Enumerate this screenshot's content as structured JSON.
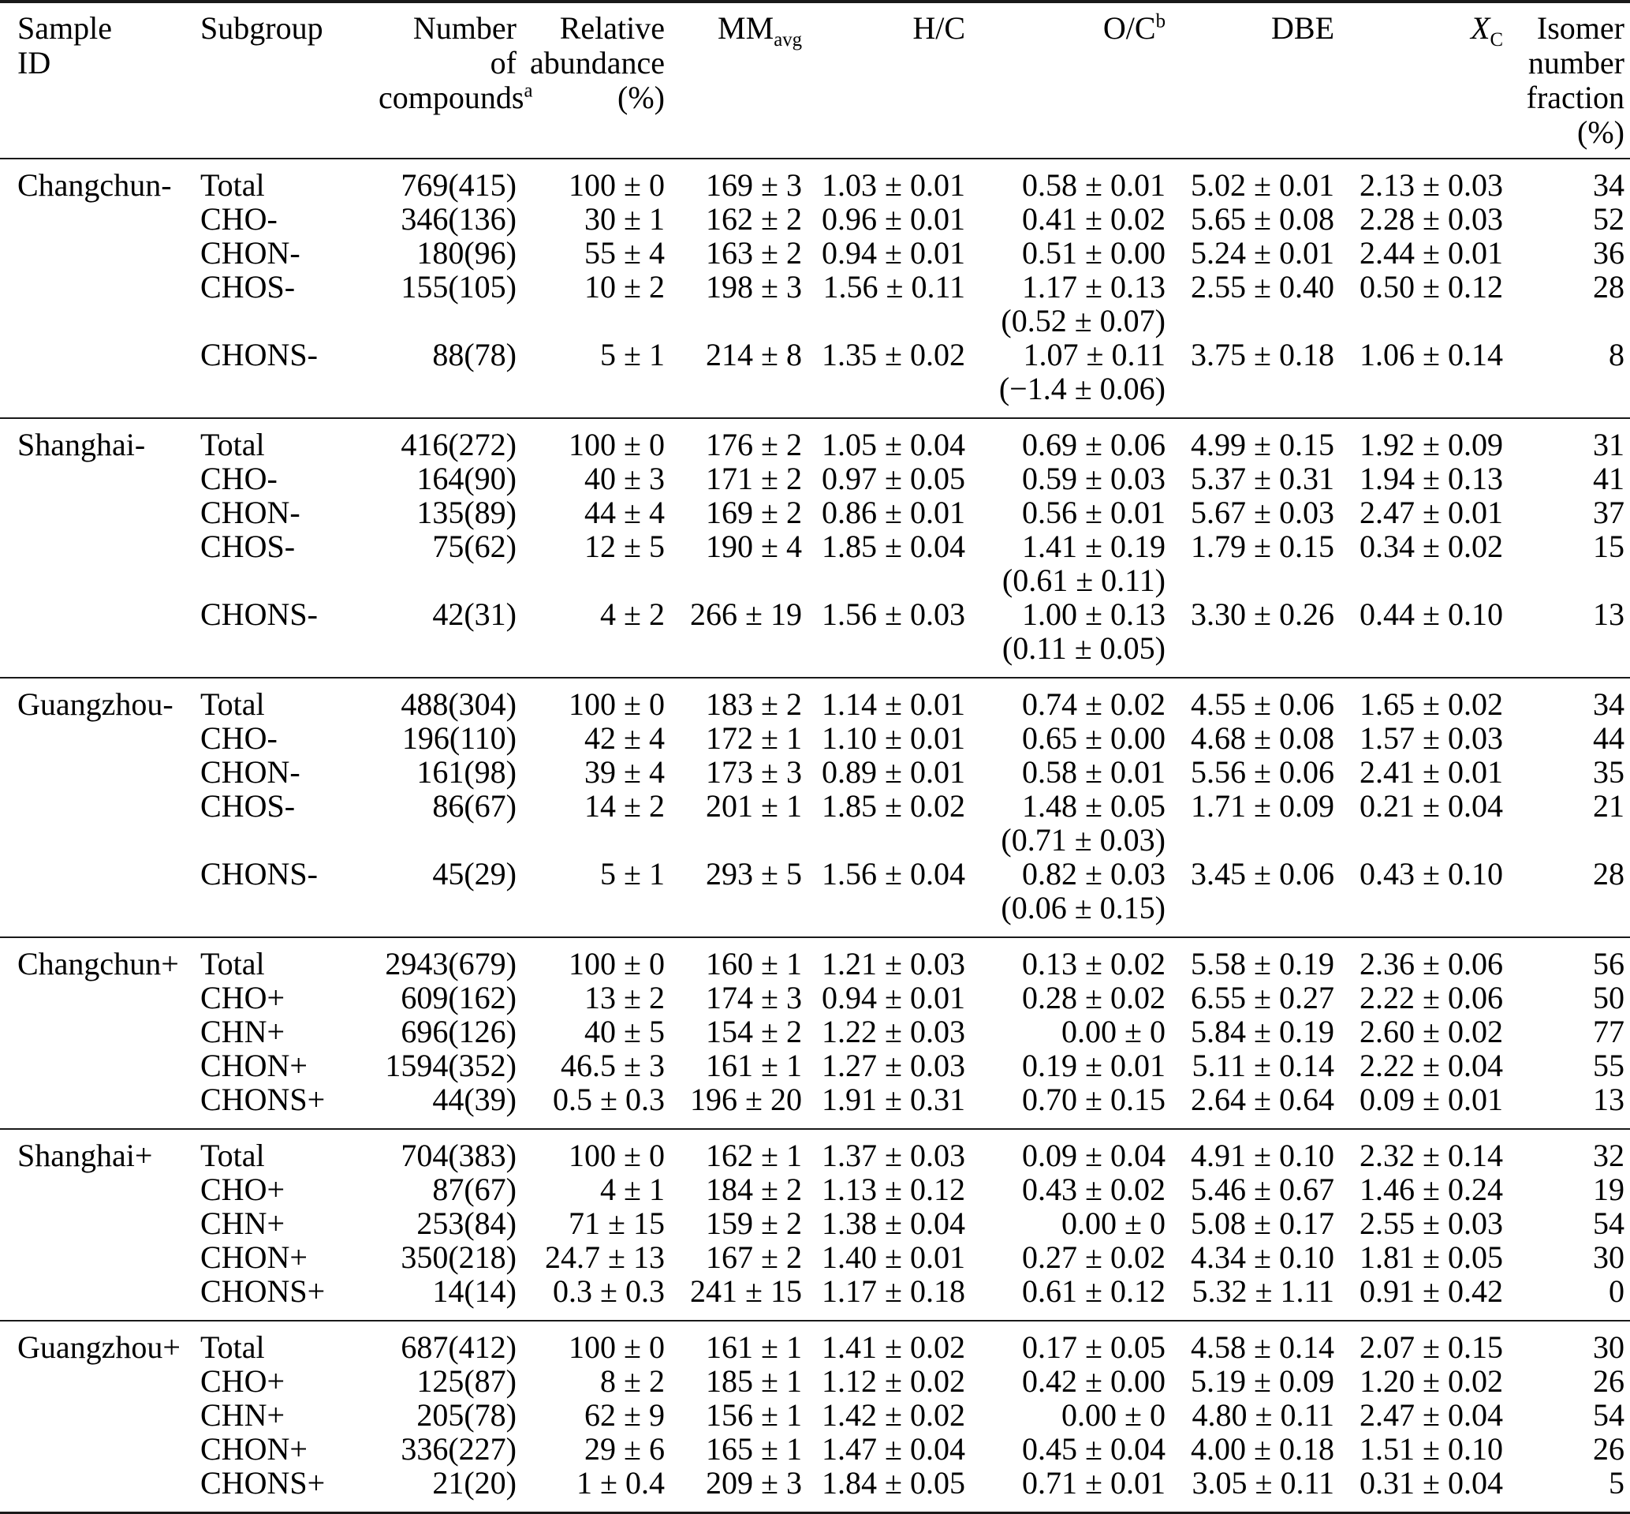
{
  "header": {
    "sample_id": {
      "line1": "Sample",
      "line2": "ID"
    },
    "subgroup": "Subgroup",
    "number_of_compounds": {
      "line1": "Number",
      "line2": "of",
      "line3_base": "compounds",
      "line3_sup": "a"
    },
    "relative_abundance": {
      "line1": "Relative",
      "line2": "abundance",
      "line3": "(%)"
    },
    "mm_avg": {
      "base": "MM",
      "sub": "avg"
    },
    "hc": "H/C",
    "oc": {
      "base": "O/C",
      "sup": "b"
    },
    "dbe": "DBE",
    "xc": {
      "base": "X",
      "sub": "C"
    },
    "isomer": {
      "line1": "Isomer",
      "line2": "number",
      "line3": "fraction",
      "line4": "(%)"
    }
  },
  "groups": [
    {
      "sample_id": "Changchun-",
      "rows": [
        {
          "subgroup": "Total",
          "n": "769(415)",
          "ra": "100 ± 0",
          "mm": "169 ± 3",
          "hc": "1.03 ± 0.01",
          "oc": "0.58 ± 0.01",
          "oc2": "",
          "dbe": "5.02 ± 0.01",
          "xc": "2.13 ± 0.03",
          "isomer": "34"
        },
        {
          "subgroup": "CHO-",
          "n": "346(136)",
          "ra": "30 ± 1",
          "mm": "162 ± 2",
          "hc": "0.96 ± 0.01",
          "oc": "0.41 ± 0.02",
          "oc2": "",
          "dbe": "5.65 ± 0.08",
          "xc": "2.28 ± 0.03",
          "isomer": "52"
        },
        {
          "subgroup": "CHON-",
          "n": "180(96)",
          "ra": "55 ± 4",
          "mm": "163 ± 2",
          "hc": "0.94 ± 0.01",
          "oc": "0.51 ± 0.00",
          "oc2": "",
          "dbe": "5.24 ± 0.01",
          "xc": "2.44 ± 0.01",
          "isomer": "36"
        },
        {
          "subgroup": "CHOS-",
          "n": "155(105)",
          "ra": "10 ± 2",
          "mm": "198 ± 3",
          "hc": "1.56 ± 0.11",
          "oc": "1.17 ± 0.13",
          "oc2": "(0.52 ± 0.07)",
          "dbe": "2.55 ± 0.40",
          "xc": "0.50 ± 0.12",
          "isomer": "28"
        },
        {
          "subgroup": "CHONS-",
          "n": "88(78)",
          "ra": "5 ± 1",
          "mm": "214 ± 8",
          "hc": "1.35 ± 0.02",
          "oc": "1.07 ± 0.11",
          "oc2": "(−1.4 ± 0.06)",
          "dbe": "3.75 ± 0.18",
          "xc": "1.06 ± 0.14",
          "isomer": "8"
        }
      ]
    },
    {
      "sample_id": "Shanghai-",
      "rows": [
        {
          "subgroup": "Total",
          "n": "416(272)",
          "ra": "100 ± 0",
          "mm": "176 ± 2",
          "hc": "1.05 ± 0.04",
          "oc": "0.69 ± 0.06",
          "oc2": "",
          "dbe": "4.99 ± 0.15",
          "xc": "1.92 ± 0.09",
          "isomer": "31"
        },
        {
          "subgroup": "CHO-",
          "n": "164(90)",
          "ra": "40 ± 3",
          "mm": "171 ± 2",
          "hc": "0.97 ± 0.05",
          "oc": "0.59 ± 0.03",
          "oc2": "",
          "dbe": "5.37 ± 0.31",
          "xc": "1.94 ± 0.13",
          "isomer": "41"
        },
        {
          "subgroup": "CHON-",
          "n": "135(89)",
          "ra": "44 ± 4",
          "mm": "169 ± 2",
          "hc": "0.86 ± 0.01",
          "oc": "0.56 ± 0.01",
          "oc2": "",
          "dbe": "5.67 ± 0.03",
          "xc": "2.47 ± 0.01",
          "isomer": "37"
        },
        {
          "subgroup": "CHOS-",
          "n": "75(62)",
          "ra": "12 ± 5",
          "mm": "190 ± 4",
          "hc": "1.85 ± 0.04",
          "oc": "1.41 ± 0.19",
          "oc2": "(0.61 ± 0.11)",
          "dbe": "1.79 ± 0.15",
          "xc": "0.34 ± 0.02",
          "isomer": "15"
        },
        {
          "subgroup": "CHONS-",
          "n": "42(31)",
          "ra": "4 ± 2",
          "mm": "266 ± 19",
          "hc": "1.56 ± 0.03",
          "oc": "1.00 ± 0.13",
          "oc2": "(0.11 ± 0.05)",
          "dbe": "3.30 ± 0.26",
          "xc": "0.44 ± 0.10",
          "isomer": "13"
        }
      ]
    },
    {
      "sample_id": "Guangzhou-",
      "rows": [
        {
          "subgroup": "Total",
          "n": "488(304)",
          "ra": "100 ± 0",
          "mm": "183 ± 2",
          "hc": "1.14 ± 0.01",
          "oc": "0.74 ± 0.02",
          "oc2": "",
          "dbe": "4.55 ± 0.06",
          "xc": "1.65 ± 0.02",
          "isomer": "34"
        },
        {
          "subgroup": "CHO-",
          "n": "196(110)",
          "ra": "42 ± 4",
          "mm": "172 ± 1",
          "hc": "1.10 ± 0.01",
          "oc": "0.65 ± 0.00",
          "oc2": "",
          "dbe": "4.68 ± 0.08",
          "xc": "1.57 ± 0.03",
          "isomer": "44"
        },
        {
          "subgroup": "CHON-",
          "n": "161(98)",
          "ra": "39 ± 4",
          "mm": "173 ± 3",
          "hc": "0.89 ± 0.01",
          "oc": "0.58 ± 0.01",
          "oc2": "",
          "dbe": "5.56 ± 0.06",
          "xc": "2.41 ± 0.01",
          "isomer": "35"
        },
        {
          "subgroup": "CHOS-",
          "n": "86(67)",
          "ra": "14 ± 2",
          "mm": "201 ± 1",
          "hc": "1.85 ± 0.02",
          "oc": "1.48 ± 0.05",
          "oc2": "(0.71 ± 0.03)",
          "dbe": "1.71 ± 0.09",
          "xc": "0.21 ± 0.04",
          "isomer": "21"
        },
        {
          "subgroup": "CHONS-",
          "n": "45(29)",
          "ra": "5 ± 1",
          "mm": "293 ± 5",
          "hc": "1.56 ± 0.04",
          "oc": "0.82 ± 0.03",
          "oc2": "(0.06 ± 0.15)",
          "dbe": "3.45 ± 0.06",
          "xc": "0.43 ± 0.10",
          "isomer": "28"
        }
      ]
    },
    {
      "sample_id": "Changchun+",
      "rows": [
        {
          "subgroup": "Total",
          "n": "2943(679)",
          "ra": "100 ± 0",
          "mm": "160 ± 1",
          "hc": "1.21 ± 0.03",
          "oc": "0.13 ± 0.02",
          "oc2": "",
          "dbe": "5.58 ± 0.19",
          "xc": "2.36 ± 0.06",
          "isomer": "56"
        },
        {
          "subgroup": "CHO+",
          "n": "609(162)",
          "ra": "13 ± 2",
          "mm": "174 ± 3",
          "hc": "0.94 ± 0.01",
          "oc": "0.28 ± 0.02",
          "oc2": "",
          "dbe": "6.55 ± 0.27",
          "xc": "2.22 ± 0.06",
          "isomer": "50"
        },
        {
          "subgroup": "CHN+",
          "n": "696(126)",
          "ra": "40 ± 5",
          "mm": "154 ± 2",
          "hc": "1.22 ± 0.03",
          "oc": "0.00 ± 0",
          "oc2": "",
          "dbe": "5.84 ± 0.19",
          "xc": "2.60 ± 0.02",
          "isomer": "77"
        },
        {
          "subgroup": "CHON+",
          "n": "1594(352)",
          "ra": "46.5 ± 3",
          "mm": "161 ± 1",
          "hc": "1.27 ± 0.03",
          "oc": "0.19 ± 0.01",
          "oc2": "",
          "dbe": "5.11 ± 0.14",
          "xc": "2.22 ± 0.04",
          "isomer": "55"
        },
        {
          "subgroup": "CHONS+",
          "n": "44(39)",
          "ra": "0.5 ± 0.3",
          "mm": "196 ± 20",
          "hc": "1.91 ± 0.31",
          "oc": "0.70 ± 0.15",
          "oc2": "",
          "dbe": "2.64 ± 0.64",
          "xc": "0.09 ± 0.01",
          "isomer": "13"
        }
      ]
    },
    {
      "sample_id": "Shanghai+",
      "rows": [
        {
          "subgroup": "Total",
          "n": "704(383)",
          "ra": "100 ± 0",
          "mm": "162 ± 1",
          "hc": "1.37 ± 0.03",
          "oc": "0.09 ± 0.04",
          "oc2": "",
          "dbe": "4.91 ± 0.10",
          "xc": "2.32 ± 0.14",
          "isomer": "32"
        },
        {
          "subgroup": "CHO+",
          "n": "87(67)",
          "ra": "4 ± 1",
          "mm": "184 ± 2",
          "hc": "1.13 ± 0.12",
          "oc": "0.43 ± 0.02",
          "oc2": "",
          "dbe": "5.46 ± 0.67",
          "xc": "1.46 ± 0.24",
          "isomer": "19"
        },
        {
          "subgroup": "CHN+",
          "n": "253(84)",
          "ra": "71 ± 15",
          "mm": "159 ± 2",
          "hc": "1.38 ± 0.04",
          "oc": "0.00 ± 0",
          "oc2": "",
          "dbe": "5.08 ± 0.17",
          "xc": "2.55 ± 0.03",
          "isomer": "54"
        },
        {
          "subgroup": "CHON+",
          "n": "350(218)",
          "ra": "24.7 ± 13",
          "mm": "167 ± 2",
          "hc": "1.40 ± 0.01",
          "oc": "0.27 ± 0.02",
          "oc2": "",
          "dbe": "4.34 ± 0.10",
          "xc": "1.81 ± 0.05",
          "isomer": "30"
        },
        {
          "subgroup": "CHONS+",
          "n": "14(14)",
          "ra": "0.3 ± 0.3",
          "mm": "241 ± 15",
          "hc": "1.17 ± 0.18",
          "oc": "0.61 ± 0.12",
          "oc2": "",
          "dbe": "5.32 ± 1.11",
          "xc": "0.91 ± 0.42",
          "isomer": "0"
        }
      ]
    },
    {
      "sample_id": "Guangzhou+",
      "rows": [
        {
          "subgroup": "Total",
          "n": "687(412)",
          "ra": "100 ± 0",
          "mm": "161 ± 1",
          "hc": "1.41 ± 0.02",
          "oc": "0.17 ± 0.05",
          "oc2": "",
          "dbe": "4.58 ± 0.14",
          "xc": "2.07 ± 0.15",
          "isomer": "30"
        },
        {
          "subgroup": "CHO+",
          "n": "125(87)",
          "ra": "8 ± 2",
          "mm": "185 ± 1",
          "hc": "1.12 ± 0.02",
          "oc": "0.42 ± 0.00",
          "oc2": "",
          "dbe": "5.19 ± 0.09",
          "xc": "1.20 ± 0.02",
          "isomer": "26"
        },
        {
          "subgroup": "CHN+",
          "n": "205(78)",
          "ra": "62 ± 9",
          "mm": "156 ± 1",
          "hc": "1.42 ± 0.02",
          "oc": "0.00 ± 0",
          "oc2": "",
          "dbe": "4.80 ± 0.11",
          "xc": "2.47 ± 0.04",
          "isomer": "54"
        },
        {
          "subgroup": "CHON+",
          "n": "336(227)",
          "ra": "29 ± 6",
          "mm": "165 ± 1",
          "hc": "1.47 ± 0.04",
          "oc": "0.45 ± 0.04",
          "oc2": "",
          "dbe": "4.00 ± 0.18",
          "xc": "1.51 ± 0.10",
          "isomer": "26"
        },
        {
          "subgroup": "CHONS+",
          "n": "21(20)",
          "ra": "1 ± 0.4",
          "mm": "209 ± 3",
          "hc": "1.84 ± 0.05",
          "oc": "0.71 ± 0.01",
          "oc2": "",
          "dbe": "3.05 ± 0.11",
          "xc": "0.31 ± 0.04",
          "isomer": "5"
        }
      ]
    }
  ]
}
